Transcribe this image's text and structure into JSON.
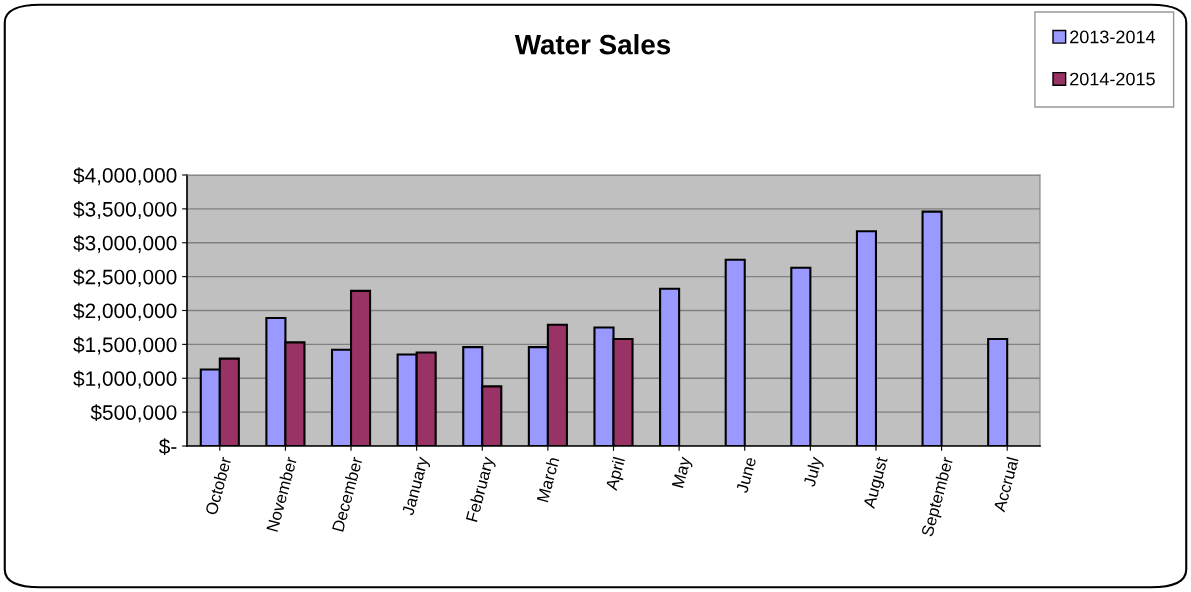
{
  "chart_data": {
    "type": "bar",
    "title": "Water Sales",
    "categories": [
      "October",
      "November",
      "December",
      "January",
      "February",
      "March",
      "April",
      "May",
      "June",
      "July",
      "August",
      "September",
      "Accrual"
    ],
    "series": [
      {
        "name": "2013-2014",
        "color": "#9999ff",
        "values": [
          1130000,
          1890000,
          1420000,
          1350000,
          1460000,
          1460000,
          1750000,
          2320000,
          2750000,
          2630000,
          3170000,
          3460000,
          1580000
        ]
      },
      {
        "name": "2014-2015",
        "color": "#993366",
        "values": [
          1290000,
          1530000,
          2290000,
          1380000,
          880000,
          1790000,
          1580000,
          null,
          null,
          null,
          null,
          null,
          null
        ]
      }
    ],
    "ylim": [
      0,
      4000000
    ],
    "yticks": [
      {
        "value": 0,
        "label": "$-"
      },
      {
        "value": 500000,
        "label": "$500,000"
      },
      {
        "value": 1000000,
        "label": "$1,000,000"
      },
      {
        "value": 1500000,
        "label": "$1,500,000"
      },
      {
        "value": 2000000,
        "label": "$2,000,000"
      },
      {
        "value": 2500000,
        "label": "$2,500,000"
      },
      {
        "value": 3000000,
        "label": "$3,000,000"
      },
      {
        "value": 3500000,
        "label": "$3,500,000"
      },
      {
        "value": 4000000,
        "label": "$4,000,000"
      }
    ],
    "grid": "y",
    "legend": "top right"
  }
}
